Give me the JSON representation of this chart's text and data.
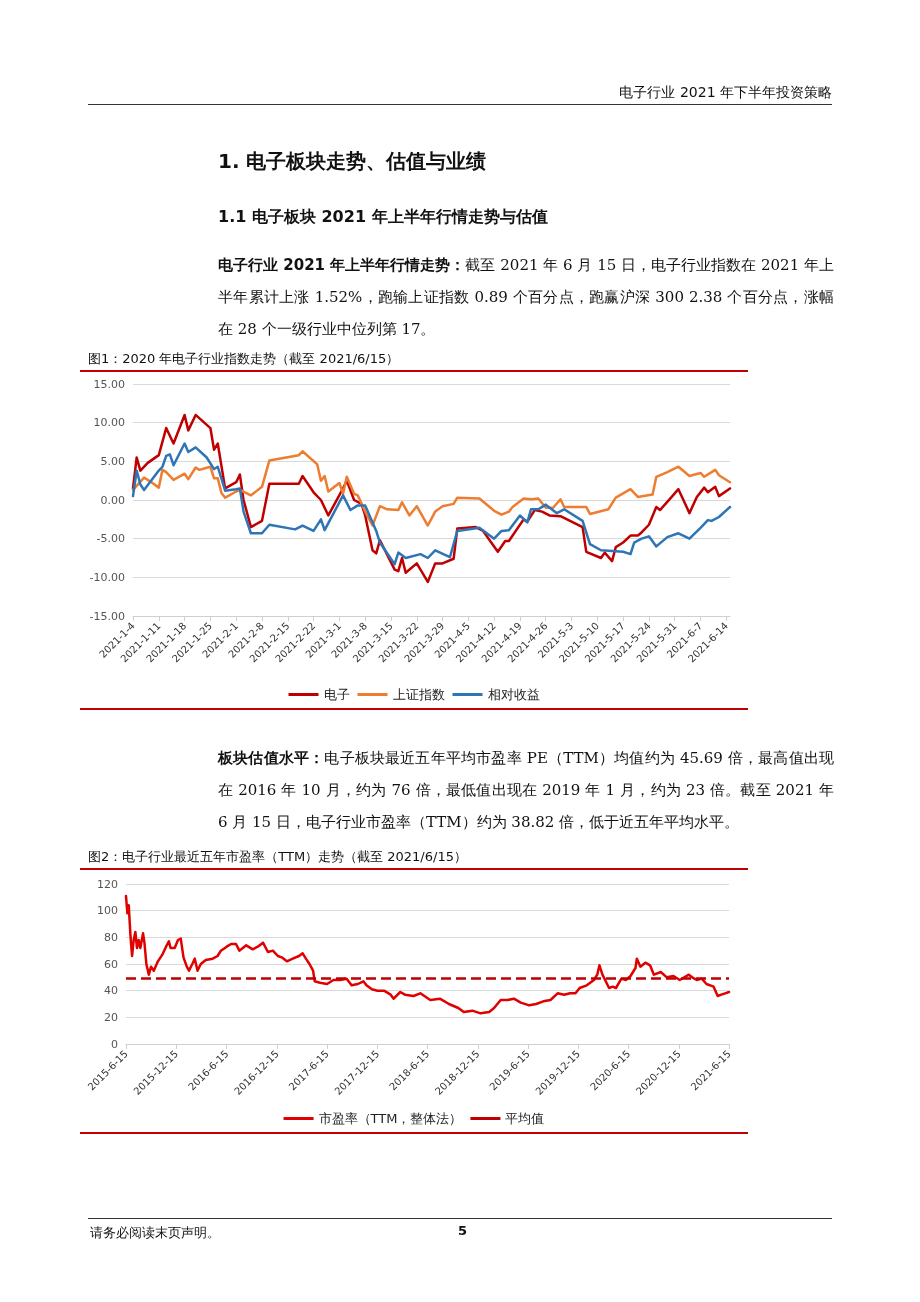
{
  "chart_data": [
    {
      "type": "line",
      "title": "图1：2020 年电子行业指数走势（截至 2021/6/15）",
      "annotations": [
        "电子行业 2021 年下半年投资策略",
        "1. 电子板块走势、估值与业绩",
        "1.1 电子板块 2021 年上半年行情走势与估值",
        "电子行业 2021 年上半年行情走势：截至 2021 年 6 月 15 日，电子行业指数在 2021 年上半年累计上涨 1.52%，跑输上证指数 0.89 个百分点，跑赢沪深 300 2.38 个百分点，涨幅在 28 个一级行业中位列第 17。"
      ],
      "series": [
        {
          "name": "电子",
          "color": "#c00000",
          "x": [
            "2021-01-04",
            "2021-01-05",
            "2021-01-06",
            "2021-01-08",
            "2021-01-11",
            "2021-01-13",
            "2021-01-15",
            "2021-01-18",
            "2021-01-19",
            "2021-01-21",
            "2021-01-25",
            "2021-01-26",
            "2021-01-27",
            "2021-01-29",
            "2021-02-01",
            "2021-02-02",
            "2021-02-03",
            "2021-02-05",
            "2021-02-08",
            "2021-02-10",
            "2021-02-18",
            "2021-02-19",
            "2021-02-22",
            "2021-02-24",
            "2021-02-26",
            "2021-03-02",
            "2021-03-03",
            "2021-03-05",
            "2021-03-07",
            "2021-03-08",
            "2021-03-10",
            "2021-03-11",
            "2021-03-12",
            "2021-03-16",
            "2021-03-17",
            "2021-03-18",
            "2021-03-19",
            "2021-03-22",
            "2021-03-25",
            "2021-03-27",
            "2021-03-29",
            "2021-04-01",
            "2021-04-02",
            "2021-04-07",
            "2021-04-09",
            "2021-04-13",
            "2021-04-15",
            "2021-04-16",
            "2021-04-20",
            "2021-04-21",
            "2021-04-23",
            "2021-04-25",
            "2021-04-27",
            "2021-04-30",
            "2021-05-06",
            "2021-05-07",
            "2021-05-11",
            "2021-05-12",
            "2021-05-14",
            "2021-05-15",
            "2021-05-17",
            "2021-05-19",
            "2021-05-21",
            "2021-05-22",
            "2021-05-24",
            "2021-05-26",
            "2021-05-27",
            "2021-05-30",
            "2021-06-01",
            "2021-06-04",
            "2021-06-06",
            "2021-06-08",
            "2021-06-09",
            "2021-06-11",
            "2021-06-12",
            "2021-06-15"
          ],
          "values": [
            1.5,
            5.5,
            3.8,
            4.8,
            5.8,
            9.3,
            7.3,
            11,
            9,
            11,
            9.3,
            6.5,
            7.3,
            1.5,
            2.3,
            3.3,
            0,
            -3.5,
            -2.7,
            2.1,
            2.1,
            3.1,
            1,
            0,
            -2,
            1.5,
            2.5,
            0,
            -0.5,
            -2,
            -6.5,
            -6.9,
            -5.2,
            -9,
            -9.2,
            -7.5,
            -9.4,
            -8.2,
            -10.6,
            -8.2,
            -8.2,
            -7.6,
            -3.7,
            -3.5,
            -4,
            -6.7,
            -5.3,
            -5.3,
            -2.5,
            -2.8,
            -1.3,
            -1.5,
            -2,
            -2.1,
            -3.5,
            -6.7,
            -7.5,
            -6.8,
            -7.9,
            -6.1,
            -5.5,
            -4.6,
            -4.6,
            -4.2,
            -3.2,
            -0.9,
            -1.3,
            0.3,
            1.4,
            -1.7,
            0.4,
            1.6,
            1,
            1.7,
            0.5,
            1.5
          ]
        },
        {
          "name": "上证指数",
          "color": "#ed7d31",
          "x": [
            "2021-01-04",
            "2021-01-07",
            "2021-01-09",
            "2021-01-11",
            "2021-01-12",
            "2021-01-13",
            "2021-01-15",
            "2021-01-18",
            "2021-01-19",
            "2021-01-21",
            "2021-01-22",
            "2021-01-25",
            "2021-01-26",
            "2021-01-27",
            "2021-01-28",
            "2021-01-29",
            "2021-02-01",
            "2021-02-02",
            "2021-02-05",
            "2021-02-08",
            "2021-02-10",
            "2021-02-18",
            "2021-02-19",
            "2021-02-23",
            "2021-02-24",
            "2021-02-25",
            "2021-02-26",
            "2021-03-01",
            "2021-03-02",
            "2021-03-03",
            "2021-03-05",
            "2021-03-06",
            "2021-03-08",
            "2021-03-10",
            "2021-03-12",
            "2021-03-14",
            "2021-03-17",
            "2021-03-18",
            "2021-03-20",
            "2021-03-22",
            "2021-03-25",
            "2021-03-27",
            "2021-03-29",
            "2021-04-01",
            "2021-04-02",
            "2021-04-08",
            "2021-04-12",
            "2021-04-14",
            "2021-04-16",
            "2021-04-17",
            "2021-04-20",
            "2021-04-22",
            "2021-04-24",
            "2021-04-26",
            "2021-04-28",
            "2021-04-30",
            "2021-05-01",
            "2021-05-07",
            "2021-05-08",
            "2021-05-13",
            "2021-05-15",
            "2021-05-19",
            "2021-05-21",
            "2021-05-25",
            "2021-05-26",
            "2021-05-29",
            "2021-06-01",
            "2021-06-04",
            "2021-06-07",
            "2021-06-08",
            "2021-06-11",
            "2021-06-12",
            "2021-06-15"
          ],
          "values": [
            1.3,
            2.9,
            2.3,
            1.6,
            3.9,
            3.6,
            2.6,
            3.4,
            2.7,
            4.2,
            3.9,
            4.3,
            2.8,
            2.8,
            0.9,
            0.3,
            1.1,
            1.3,
            0.6,
            1.7,
            5.1,
            5.8,
            6.3,
            4.6,
            2.5,
            3.1,
            1.1,
            2.2,
            0.8,
            3,
            0.8,
            0.6,
            -1.5,
            -3.3,
            -0.8,
            -1.2,
            -1.3,
            -0.3,
            -2,
            -0.8,
            -3.3,
            -1.5,
            -0.8,
            -0.5,
            0.3,
            0.2,
            -1.4,
            -1.9,
            -1.5,
            -0.9,
            0.2,
            0.1,
            0.2,
            -1,
            -1,
            0.1,
            -0.9,
            -0.9,
            -1.8,
            -1.2,
            0.3,
            1.4,
            0.4,
            0.7,
            3,
            3.6,
            4.3,
            3.1,
            3.5,
            3,
            3.9,
            3.2,
            2.3
          ]
        },
        {
          "name": "相对收益",
          "color": "#2e75b6",
          "x": [
            "2021-01-04",
            "2021-01-05",
            "2021-01-06",
            "2021-01-07",
            "2021-01-11",
            "2021-01-12",
            "2021-01-13",
            "2021-01-14",
            "2021-01-15",
            "2021-01-18",
            "2021-01-19",
            "2021-01-21",
            "2021-01-24",
            "2021-01-26",
            "2021-01-27",
            "2021-01-29",
            "2021-02-01",
            "2021-02-02",
            "2021-02-03",
            "2021-02-05",
            "2021-02-08",
            "2021-02-10",
            "2021-02-17",
            "2021-02-19",
            "2021-02-22",
            "2021-02-24",
            "2021-02-25",
            "2021-03-02",
            "2021-03-04",
            "2021-03-06",
            "2021-03-08",
            "2021-03-11",
            "2021-03-12",
            "2021-03-16",
            "2021-03-17",
            "2021-03-19",
            "2021-03-23",
            "2021-03-25",
            "2021-03-27",
            "2021-03-31",
            "2021-04-02",
            "2021-04-08",
            "2021-04-12",
            "2021-04-14",
            "2021-04-16",
            "2021-04-19",
            "2021-04-21",
            "2021-04-22",
            "2021-04-24",
            "2021-04-26",
            "2021-04-29",
            "2021-05-01",
            "2021-05-06",
            "2021-05-08",
            "2021-05-11",
            "2021-05-17",
            "2021-05-19",
            "2021-05-20",
            "2021-05-22",
            "2021-05-24",
            "2021-05-26",
            "2021-05-29",
            "2021-06-01",
            "2021-06-04",
            "2021-06-07",
            "2021-06-09",
            "2021-06-10",
            "2021-06-12",
            "2021-06-15"
          ],
          "values": [
            0.5,
            3.8,
            2,
            1.3,
            3.8,
            4.3,
            5.7,
            5.9,
            4.5,
            7.3,
            6.2,
            6.8,
            5.5,
            4,
            4.3,
            1.2,
            1.4,
            1.5,
            -1.5,
            -4.3,
            -4.3,
            -3.2,
            -3.8,
            -3.3,
            -4,
            -2.5,
            -3.9,
            0.6,
            -1.3,
            -0.7,
            -0.7,
            -4,
            -5.5,
            -8.3,
            -6.8,
            -7.5,
            -7,
            -7.5,
            -6.5,
            -7.4,
            -4,
            -3.6,
            -5,
            -4,
            -3.9,
            -2,
            -2.9,
            -1.2,
            -1.2,
            -0.6,
            -1.7,
            -1.2,
            -2.7,
            -5.7,
            -6.5,
            -6.7,
            -7,
            -5.5,
            -5,
            -4.7,
            -6,
            -4.8,
            -4.3,
            -5,
            -3.6,
            -2.6,
            -2.7,
            -2.2,
            -0.9
          ]
        }
      ],
      "xlim": [
        "2021-01-04",
        "2021-06-15"
      ],
      "xticks": [
        {
          "value": "2021-01-04",
          "label": "2021-1-4"
        },
        {
          "value": "2021-01-11",
          "label": "2021-1-11"
        },
        {
          "value": "2021-01-18",
          "label": "2021-1-18"
        },
        {
          "value": "2021-01-25",
          "label": "2021-1-25"
        },
        {
          "value": "2021-02-01",
          "label": "2021-2-1"
        },
        {
          "value": "2021-02-08",
          "label": "2021-2-8"
        },
        {
          "value": "2021-02-15",
          "label": "2021-2-15"
        },
        {
          "value": "2021-02-22",
          "label": "2021-2-22"
        },
        {
          "value": "2021-03-01",
          "label": "2021-3-1"
        },
        {
          "value": "2021-03-08",
          "label": "2021-3-8"
        },
        {
          "value": "2021-03-15",
          "label": "2021-3-15"
        },
        {
          "value": "2021-03-22",
          "label": "2021-3-22"
        },
        {
          "value": "2021-03-29",
          "label": "2021-3-29"
        },
        {
          "value": "2021-04-05",
          "label": "2021-4-5"
        },
        {
          "value": "2021-04-12",
          "label": "2021-4-12"
        },
        {
          "value": "2021-04-19",
          "label": "2021-4-19"
        },
        {
          "value": "2021-04-26",
          "label": "2021-4-26"
        },
        {
          "value": "2021-05-03",
          "label": "2021-5-3"
        },
        {
          "value": "2021-05-10",
          "label": "2021-5-10"
        },
        {
          "value": "2021-05-17",
          "label": "2021-5-17"
        },
        {
          "value": "2021-05-24",
          "label": "2021-5-24"
        },
        {
          "value": "2021-05-31",
          "label": "2021-5-31"
        },
        {
          "value": "2021-06-07",
          "label": "2021-6-7"
        },
        {
          "value": "2021-06-14",
          "label": "2021-6-14"
        }
      ],
      "ylim": [
        -15,
        15
      ],
      "yticks": [
        {
          "value": -15,
          "label": "-15.00"
        },
        {
          "value": -10,
          "label": "-10.00"
        },
        {
          "value": -5,
          "label": "-5.00"
        },
        {
          "value": 0,
          "label": "0.00"
        },
        {
          "value": 5,
          "label": "5.00"
        },
        {
          "value": 10,
          "label": "10.00"
        },
        {
          "value": 15,
          "label": "15.00"
        }
      ],
      "grid": "y",
      "legend": "bottom"
    },
    {
      "type": "line",
      "title": "图2：电子行业最近五年市盈率（TTM）走势（截至 2021/6/15）",
      "annotations": [
        "板块估值水平：电子板块最近五年平均市盈率 PE（TTM）均值约为 45.69 倍，最高值出现在 2016 年 10 月，约为 76 倍，最低值出现在 2019 年 1 月，约为 23 倍。截至 2021 年 6 月 15 日，电子行业市盈率（TTM）约为 38.82 倍，低于近五年平均水平。",
        "请务必阅读末页声明。",
        "5"
      ],
      "series": [
        {
          "name": "市盈率（TTM，整体法）",
          "color": "#e00000",
          "x": [
            "2015-06-15",
            "2015-06-20",
            "2015-06-25",
            "2015-07-01",
            "2015-07-07",
            "2015-07-13",
            "2015-07-19",
            "2015-07-25",
            "2015-07-31",
            "2015-08-06",
            "2015-08-16",
            "2015-08-21",
            "2015-08-28",
            "2015-09-06",
            "2015-09-14",
            "2015-09-24",
            "2015-10-09",
            "2015-10-25",
            "2015-11-10",
            "2015-11-18",
            "2015-11-24",
            "2015-12-09",
            "2015-12-21",
            "2015-12-31",
            "2016-01-10",
            "2016-01-22",
            "2016-01-30",
            "2016-02-11",
            "2016-02-20",
            "2016-03-01",
            "2016-03-13",
            "2016-03-31",
            "2016-04-25",
            "2016-05-13",
            "2016-05-25",
            "2016-06-15",
            "2016-07-01",
            "2016-07-19",
            "2016-07-31",
            "2016-08-25",
            "2016-09-18",
            "2016-10-06",
            "2016-10-25",
            "2016-11-12",
            "2016-11-30",
            "2016-12-18",
            "2017-01-01",
            "2017-01-20",
            "2017-02-10",
            "2017-03-05",
            "2017-03-18",
            "2017-03-30",
            "2017-04-12",
            "2017-04-25",
            "2017-05-01",
            "2017-05-20",
            "2017-06-15",
            "2017-07-08",
            "2017-08-01",
            "2017-08-25",
            "2017-09-12",
            "2017-10-05",
            "2017-10-25",
            "2017-11-05",
            "2017-11-25",
            "2017-12-15",
            "2018-01-08",
            "2018-02-01",
            "2018-02-12",
            "2018-03-08",
            "2018-03-25",
            "2018-04-25",
            "2018-05-20",
            "2018-06-25",
            "2018-07-30",
            "2018-09-01",
            "2018-10-05",
            "2018-10-25",
            "2018-11-25",
            "2018-12-25",
            "2019-01-25",
            "2019-02-12",
            "2019-03-08",
            "2019-04-01",
            "2019-04-25",
            "2019-05-20",
            "2019-06-20",
            "2019-07-15",
            "2019-08-10",
            "2019-09-05",
            "2019-10-01",
            "2019-10-25",
            "2019-11-15",
            "2019-12-05",
            "2019-12-20",
            "2020-01-15",
            "2020-02-10",
            "2020-02-22",
            "2020-03-01",
            "2020-03-12",
            "2020-04-05",
            "2020-04-18",
            "2020-04-30",
            "2020-05-20",
            "2020-06-05",
            "2020-06-22",
            "2020-07-10",
            "2020-07-15",
            "2020-07-28",
            "2020-08-15",
            "2020-09-01",
            "2020-09-15",
            "2020-10-10",
            "2020-11-01",
            "2020-11-25",
            "2020-12-18",
            "2021-01-20",
            "2021-02-01",
            "2021-02-18",
            "2021-03-08",
            "2021-03-25",
            "2021-04-20",
            "2021-05-05",
            "2021-05-18",
            "2021-06-01",
            "2021-06-15"
          ],
          "values": [
            111,
            98,
            104,
            82,
            66,
            78,
            84,
            72,
            78,
            72,
            83,
            76,
            60,
            52,
            58,
            55,
            62,
            67,
            74,
            77,
            72,
            72,
            78,
            79,
            65,
            58,
            55,
            60,
            64,
            55,
            60,
            63,
            64,
            66,
            70,
            73,
            75,
            75,
            70,
            74,
            71,
            73,
            76,
            69,
            70,
            66,
            65,
            62,
            64,
            66,
            68,
            64,
            60,
            55,
            47,
            46,
            45,
            48,
            48,
            49,
            44,
            45,
            47,
            44,
            41,
            40,
            40,
            37,
            34,
            39,
            37,
            36,
            38,
            33,
            34,
            30,
            27,
            24,
            25,
            23,
            24,
            27,
            33,
            33,
            34,
            31,
            29,
            30,
            32,
            33,
            38,
            37,
            38,
            38,
            42,
            44,
            48,
            52,
            59,
            52,
            42,
            43,
            42,
            49,
            48,
            51,
            57,
            64,
            58,
            61,
            59,
            52,
            54,
            50,
            51,
            48,
            52,
            50,
            48,
            49,
            45,
            43,
            36,
            37,
            38,
            39
          ]
        }
      ],
      "ref_lines": [
        {
          "axis": "y",
          "value": 49,
          "label": "平均值",
          "color": "#c00000",
          "line_style": "dashed"
        }
      ],
      "xlim": [
        "2015-06-15",
        "2021-06-15"
      ],
      "xticks": [
        {
          "value": "2015-06-15",
          "label": "2015-6-15"
        },
        {
          "value": "2015-12-15",
          "label": "2015-12-15"
        },
        {
          "value": "2016-06-15",
          "label": "2016-6-15"
        },
        {
          "value": "2016-12-15",
          "label": "2016-12-15"
        },
        {
          "value": "2017-06-15",
          "label": "2017-6-15"
        },
        {
          "value": "2017-12-15",
          "label": "2017-12-15"
        },
        {
          "value": "2018-06-15",
          "label": "2018-6-15"
        },
        {
          "value": "2018-12-15",
          "label": "2018-12-15"
        },
        {
          "value": "2019-06-15",
          "label": "2019-6-15"
        },
        {
          "value": "2019-12-15",
          "label": "2019-12-15"
        },
        {
          "value": "2020-06-15",
          "label": "2020-6-15"
        },
        {
          "value": "2020-12-15",
          "label": "2020-12-15"
        },
        {
          "value": "2021-06-15",
          "label": "2021-6-15"
        }
      ],
      "ylim": [
        0,
        120
      ],
      "yticks": [
        0,
        20,
        40,
        60,
        80,
        100,
        120
      ],
      "grid": "y",
      "legend": "bottom"
    }
  ]
}
